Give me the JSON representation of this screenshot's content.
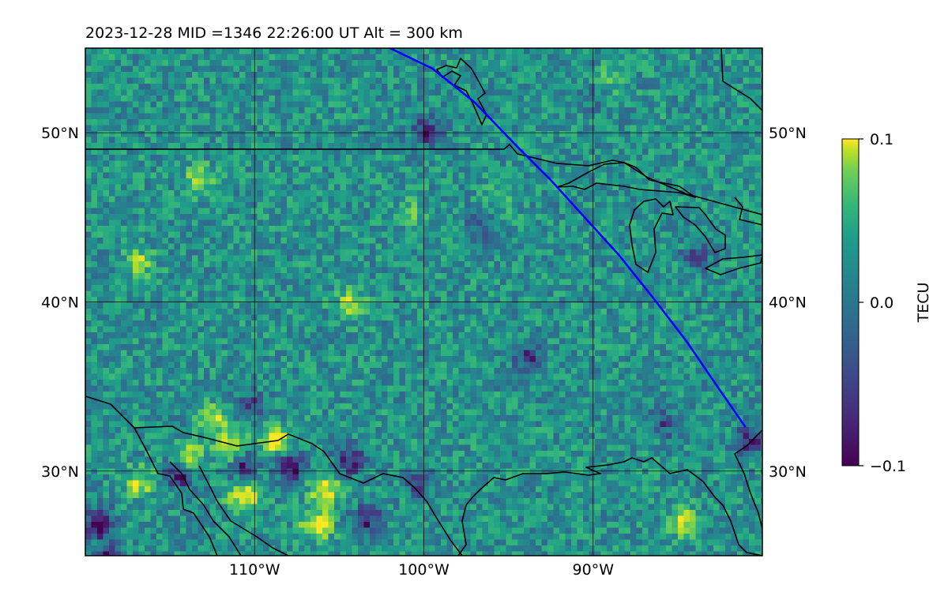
{
  "map": {
    "title": "2023-12-28  MID =1346    22:26:00  UT  Alt = 300 km",
    "projection": "plate-carree",
    "extent": {
      "lon": [
        -120,
        -80
      ],
      "lat": [
        25,
        55
      ]
    },
    "colormap": "viridis",
    "satellite_track_color": "#0000ff",
    "coastline_color": "#000000",
    "gridlines": true
  },
  "axes": {
    "x_ticks": [
      {
        "lon": -110,
        "label": "110°W"
      },
      {
        "lon": -100,
        "label": "100°W"
      },
      {
        "lon": -90,
        "label": "90°W"
      }
    ],
    "y_ticks": [
      {
        "lat": 50,
        "label": "50°N"
      },
      {
        "lat": 40,
        "label": "40°N"
      },
      {
        "lat": 30,
        "label": "30°N"
      }
    ]
  },
  "colorbar": {
    "label": "TECU",
    "range": [
      -0.1,
      0.1
    ],
    "ticks": [
      {
        "value": 0.1,
        "label": "0.1"
      },
      {
        "value": 0.0,
        "label": "0.0"
      },
      {
        "value": -0.1,
        "label": "−0.1"
      }
    ]
  },
  "satellite_track": [
    [
      -102,
      55
    ],
    [
      -99.5,
      53.8
    ],
    [
      -97,
      51.8
    ],
    [
      -94.5,
      49.2
    ],
    [
      -92.5,
      47.2
    ],
    [
      -90.5,
      45.0
    ],
    [
      -88.5,
      42.8
    ],
    [
      -86.5,
      40.3
    ],
    [
      -84.5,
      37.7
    ],
    [
      -83,
      35.5
    ],
    [
      -81,
      32.6
    ]
  ],
  "hotspots": [
    {
      "lon": -111.5,
      "lat": 31.5,
      "value": 0.1
    },
    {
      "lon": -110.8,
      "lat": 28.7,
      "value": 0.1
    },
    {
      "lon": -109.0,
      "lat": 32.0,
      "value": 0.09
    },
    {
      "lon": -106.0,
      "lat": 29.0,
      "value": 0.09
    },
    {
      "lon": -106.5,
      "lat": 27.0,
      "value": 0.1
    },
    {
      "lon": -114.0,
      "lat": 31.0,
      "value": 0.08
    },
    {
      "lon": -112.5,
      "lat": 33.2,
      "value": 0.07
    },
    {
      "lon": -117.0,
      "lat": 29.5,
      "value": 0.07
    },
    {
      "lon": -84.8,
      "lat": 27.2,
      "value": 0.08
    },
    {
      "lon": -117.0,
      "lat": 42.5,
      "value": 0.06
    },
    {
      "lon": -104.5,
      "lat": 40.0,
      "value": 0.07
    },
    {
      "lon": -113.5,
      "lat": 47.5,
      "value": 0.06
    },
    {
      "lon": -89.5,
      "lat": 53.0,
      "value": 0.05
    },
    {
      "lon": -101.0,
      "lat": 45.5,
      "value": 0.04
    },
    {
      "lon": -95.5,
      "lat": 46.5,
      "value": 0.04
    }
  ],
  "coldspots": [
    {
      "lon": -119.3,
      "lat": 27.0,
      "value": -0.1
    },
    {
      "lon": -118.8,
      "lat": 24.8,
      "value": -0.1
    },
    {
      "lon": -108.0,
      "lat": 30.5,
      "value": -0.09
    },
    {
      "lon": -114.5,
      "lat": 30.0,
      "value": -0.08
    },
    {
      "lon": -111.0,
      "lat": 30.6,
      "value": -0.08
    },
    {
      "lon": -104.5,
      "lat": 30.8,
      "value": -0.07
    },
    {
      "lon": -103.5,
      "lat": 27.3,
      "value": -0.07
    },
    {
      "lon": -100.5,
      "lat": 29.5,
      "value": -0.06
    },
    {
      "lon": -110.5,
      "lat": 34.0,
      "value": -0.06
    },
    {
      "lon": -81.0,
      "lat": 32.0,
      "value": -0.08
    },
    {
      "lon": -100.0,
      "lat": 50.3,
      "value": -0.07
    },
    {
      "lon": -94.0,
      "lat": 37.0,
      "value": -0.06
    },
    {
      "lon": -86.0,
      "lat": 33.0,
      "value": -0.05
    },
    {
      "lon": -84.0,
      "lat": 43.0,
      "value": -0.05
    },
    {
      "lon": -90.0,
      "lat": 52.5,
      "value": -0.04
    },
    {
      "lon": -97.0,
      "lat": 44.5,
      "value": -0.04
    }
  ]
}
